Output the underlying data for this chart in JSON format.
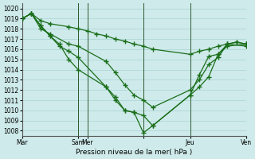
{
  "xlabel": "Pression niveau de la mer( hPa )",
  "bg_color": "#ceeaea",
  "grid_color": "#b0d8d8",
  "line_color": "#1a6e1a",
  "marker": "+",
  "linewidth": 0.9,
  "markersize": 4,
  "markeredgewidth": 1.0,
  "ylim": [
    1007.5,
    1020.5
  ],
  "yticks": [
    1008,
    1009,
    1010,
    1011,
    1012,
    1013,
    1014,
    1015,
    1016,
    1017,
    1018,
    1019,
    1020
  ],
  "xlim": [
    0,
    24
  ],
  "xtick_positions": [
    0,
    6,
    7,
    13,
    18,
    24
  ],
  "xtick_labels": [
    "Mar",
    "Sam",
    "Mer",
    "",
    "Jeu",
    "Ven"
  ],
  "vline_positions": [
    0,
    6,
    7,
    13,
    18,
    24
  ],
  "series": [
    {
      "x": [
        0,
        1,
        2,
        3,
        5,
        6,
        7,
        8,
        9,
        10,
        11,
        12,
        13,
        14,
        18,
        19,
        20,
        21,
        22,
        23,
        24
      ],
      "y": [
        1019.0,
        1019.5,
        1018.8,
        1018.5,
        1018.2,
        1018.0,
        1017.8,
        1017.5,
        1017.3,
        1017.0,
        1016.8,
        1016.5,
        1016.3,
        1016.0,
        1015.5,
        1015.8,
        1016.0,
        1016.3,
        1016.5,
        1016.7,
        1016.5
      ]
    },
    {
      "x": [
        0,
        1,
        2,
        3,
        5,
        6,
        9,
        10,
        11,
        12,
        13,
        14,
        18,
        19,
        20,
        21,
        22,
        23,
        24
      ],
      "y": [
        1019.0,
        1019.5,
        1018.0,
        1017.5,
        1016.5,
        1016.3,
        1014.8,
        1013.7,
        1012.5,
        1011.5,
        1011.0,
        1010.3,
        1012.0,
        1013.0,
        1014.5,
        1015.2,
        1016.5,
        1016.7,
        1016.5
      ]
    },
    {
      "x": [
        0,
        1,
        2,
        3,
        4,
        5,
        6,
        9,
        10,
        11,
        12,
        13,
        14,
        18,
        19,
        20,
        21,
        22,
        24
      ],
      "y": [
        1019.0,
        1019.5,
        1018.3,
        1017.3,
        1016.3,
        1015.8,
        1015.2,
        1012.3,
        1011.3,
        1010.0,
        1009.8,
        1009.5,
        1008.5,
        1011.5,
        1013.5,
        1015.3,
        1015.5,
        1016.3,
        1016.5
      ]
    },
    {
      "x": [
        0,
        1,
        2,
        3,
        4,
        5,
        6,
        9,
        10,
        11,
        12,
        13,
        14,
        18,
        19,
        20,
        21,
        22,
        24
      ],
      "y": [
        1019.0,
        1019.5,
        1018.3,
        1017.3,
        1016.5,
        1015.0,
        1014.0,
        1012.3,
        1011.0,
        1010.0,
        1009.8,
        1007.8,
        1008.5,
        1011.5,
        1012.3,
        1013.3,
        1015.5,
        1016.5,
        1016.3
      ]
    }
  ]
}
